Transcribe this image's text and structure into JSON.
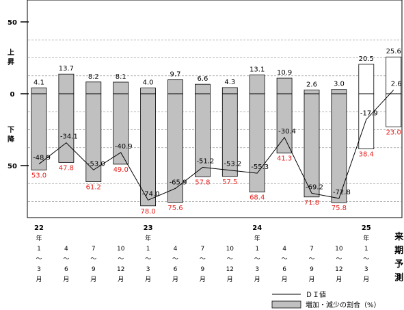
{
  "chart_data": {
    "type": "bar",
    "title": "",
    "xlabel": "",
    "ylabel": "",
    "ylim": [
      -80,
      55
    ],
    "y_ticks": [
      {
        "value": 50,
        "label": "50"
      },
      {
        "value": 0,
        "label": "0"
      },
      {
        "value": -50,
        "label": "50"
      }
    ],
    "y_side_labels": {
      "up": [
        "上",
        "昇"
      ],
      "down": [
        "下",
        "降"
      ]
    },
    "categories": [
      {
        "year": [
          "22",
          "年"
        ],
        "months": [
          "1",
          "～",
          "3"
        ],
        "suffix": "月"
      },
      {
        "year": [],
        "months": [
          "4",
          "～",
          "6"
        ],
        "suffix": "月"
      },
      {
        "year": [],
        "months": [
          "7",
          "～",
          "9"
        ],
        "suffix": "月"
      },
      {
        "year": [],
        "months": [
          "10",
          "～",
          "12"
        ],
        "suffix": "月"
      },
      {
        "year": [
          "23",
          "年"
        ],
        "months": [
          "1",
          "～",
          "3"
        ],
        "suffix": "月"
      },
      {
        "year": [],
        "months": [
          "4",
          "～",
          "6"
        ],
        "suffix": "月"
      },
      {
        "year": [],
        "months": [
          "7",
          "～",
          "9"
        ],
        "suffix": "月"
      },
      {
        "year": [],
        "months": [
          "10",
          "～",
          "12"
        ],
        "suffix": "月"
      },
      {
        "year": [
          "24",
          "年"
        ],
        "months": [
          "1",
          "～",
          "3"
        ],
        "suffix": "月"
      },
      {
        "year": [],
        "months": [
          "4",
          "～",
          "6"
        ],
        "suffix": "月"
      },
      {
        "year": [],
        "months": [
          "7",
          "～",
          "9"
        ],
        "suffix": "月"
      },
      {
        "year": [],
        "months": [
          "10",
          "～",
          "12"
        ],
        "suffix": "月"
      },
      {
        "year": [
          "25",
          "年"
        ],
        "months": [
          "1",
          "～",
          "3"
        ],
        "suffix": "月"
      },
      {
        "forecast_label": [
          "来",
          "期",
          "予",
          "測"
        ]
      }
    ],
    "series": [
      {
        "name": "増加・減少の割合（%）",
        "type": "bar",
        "increase": [
          4.1,
          13.7,
          8.2,
          8.1,
          4.0,
          9.7,
          6.6,
          4.3,
          13.1,
          10.9,
          2.6,
          3.0,
          20.5,
          25.6
        ],
        "increase_labels": [
          "4.1",
          "13.7",
          "8.2",
          "8.1",
          "4.0",
          "9.7",
          "6.6",
          "4.3",
          "13.1",
          "10.9",
          "2.6",
          "3.0",
          "20.5",
          "25.6"
        ],
        "decrease": [
          53.0,
          47.8,
          61.2,
          49.0,
          78.0,
          75.6,
          57.8,
          57.5,
          68.4,
          41.3,
          71.8,
          75.8,
          38.4,
          23.0
        ],
        "decrease_labels": [
          "53.0",
          "47.8",
          "61.2",
          "49.0",
          "78.0",
          "75.6",
          "57.8",
          "57.5",
          "68.4",
          "41.3",
          "71.8",
          "75.8",
          "38.4",
          "23.0"
        ],
        "forecast_from_index": 12
      },
      {
        "name": "ＤＩ値",
        "type": "line",
        "values": [
          -48.9,
          -34.1,
          -53.0,
          -40.9,
          -74.0,
          -65.9,
          -51.2,
          -53.2,
          -55.3,
          -30.4,
          -69.2,
          -72.8,
          -17.9,
          2.6
        ],
        "labels": [
          "-48.9",
          "-34.1",
          "-53.0",
          "-40.9",
          "-74.0",
          "-65.9",
          "-51.2",
          "-53.2",
          "-55.3",
          "-30.4",
          "-69.2",
          "-72.8",
          "-17.9",
          "2.6"
        ]
      }
    ],
    "gridlines_y": [
      -75,
      -62.5,
      -37.5,
      -25,
      -12.5,
      12.5,
      25,
      37.5
    ],
    "colors": {
      "bar_fill": "#c0c0c0",
      "forecast_fill": "#ffffff",
      "decrease_label": "#e8201c",
      "text": "#000000"
    },
    "legend": {
      "placement": "bottom-right"
    }
  }
}
